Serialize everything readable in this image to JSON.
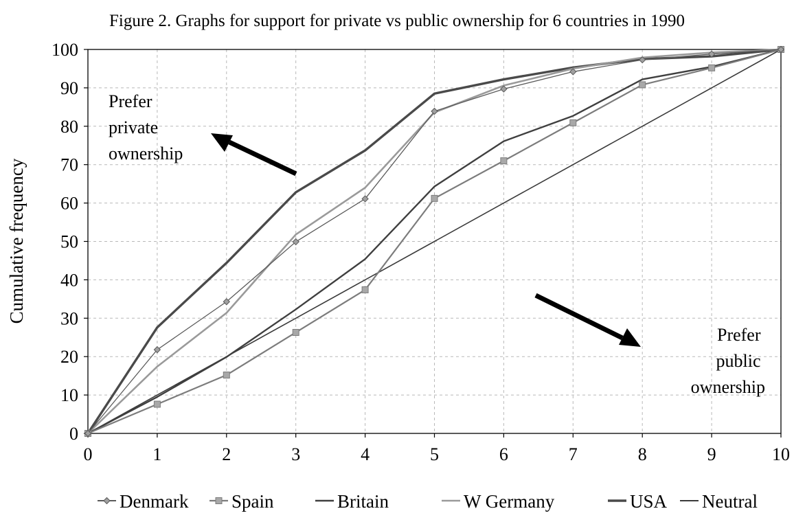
{
  "chart_data": {
    "type": "line",
    "title": "Figure 2. Graphs for support for private vs public ownership for 6 countries in 1990",
    "xlabel": "",
    "ylabel": "Cumulative frequency",
    "xlim": [
      0,
      10
    ],
    "ylim": [
      0,
      100
    ],
    "x_ticks": [
      0,
      1,
      2,
      3,
      4,
      5,
      6,
      7,
      8,
      9,
      10
    ],
    "y_ticks": [
      0,
      10,
      20,
      30,
      40,
      50,
      60,
      70,
      80,
      90,
      100
    ],
    "grid": true,
    "legend_position": "bottom",
    "x": [
      0,
      1,
      2,
      3,
      4,
      5,
      6,
      7,
      8,
      9,
      10
    ],
    "series": [
      {
        "name": "Denmark",
        "color": "#5a5a5a",
        "marker": "diamond",
        "width": 1.3,
        "values": [
          0,
          21.8,
          34.3,
          49.9,
          61.1,
          83.9,
          89.7,
          94.2,
          97.3,
          98.8,
          100
        ]
      },
      {
        "name": "Spain",
        "color": "#7c7c7c",
        "marker": "square",
        "width": 2.2,
        "values": [
          0,
          7.6,
          15.2,
          26.3,
          37.4,
          61.2,
          71.0,
          80.9,
          90.8,
          95.2,
          100
        ]
      },
      {
        "name": "Britain",
        "color": "#3f3f3f",
        "marker": "none",
        "width": 2.4,
        "values": [
          0,
          9.5,
          19.9,
          32.3,
          45.4,
          64.3,
          76.1,
          82.7,
          92.2,
          95.5,
          100
        ]
      },
      {
        "name": "W Germany",
        "color": "#9a9a9a",
        "marker": "none",
        "width": 2.6,
        "values": [
          0,
          17.4,
          31.4,
          51.8,
          64.0,
          83.6,
          90.6,
          95.0,
          97.9,
          99.2,
          100
        ]
      },
      {
        "name": "USA",
        "color": "#4a4a4a",
        "marker": "none",
        "width": 3.4,
        "values": [
          0,
          27.6,
          44.4,
          62.8,
          73.7,
          88.5,
          92.2,
          95.3,
          97.5,
          98.2,
          100
        ]
      },
      {
        "name": "Neutral",
        "color": "#3a3a3a",
        "marker": "none",
        "width": 1.6,
        "values": [
          0,
          10,
          20,
          30,
          40,
          50,
          60,
          70,
          80,
          90,
          100
        ]
      }
    ],
    "annotations": [
      {
        "lines": [
          "Prefer",
          "private",
          "ownership"
        ]
      },
      {
        "lines": [
          "Prefer",
          "public",
          "ownership"
        ]
      }
    ]
  }
}
